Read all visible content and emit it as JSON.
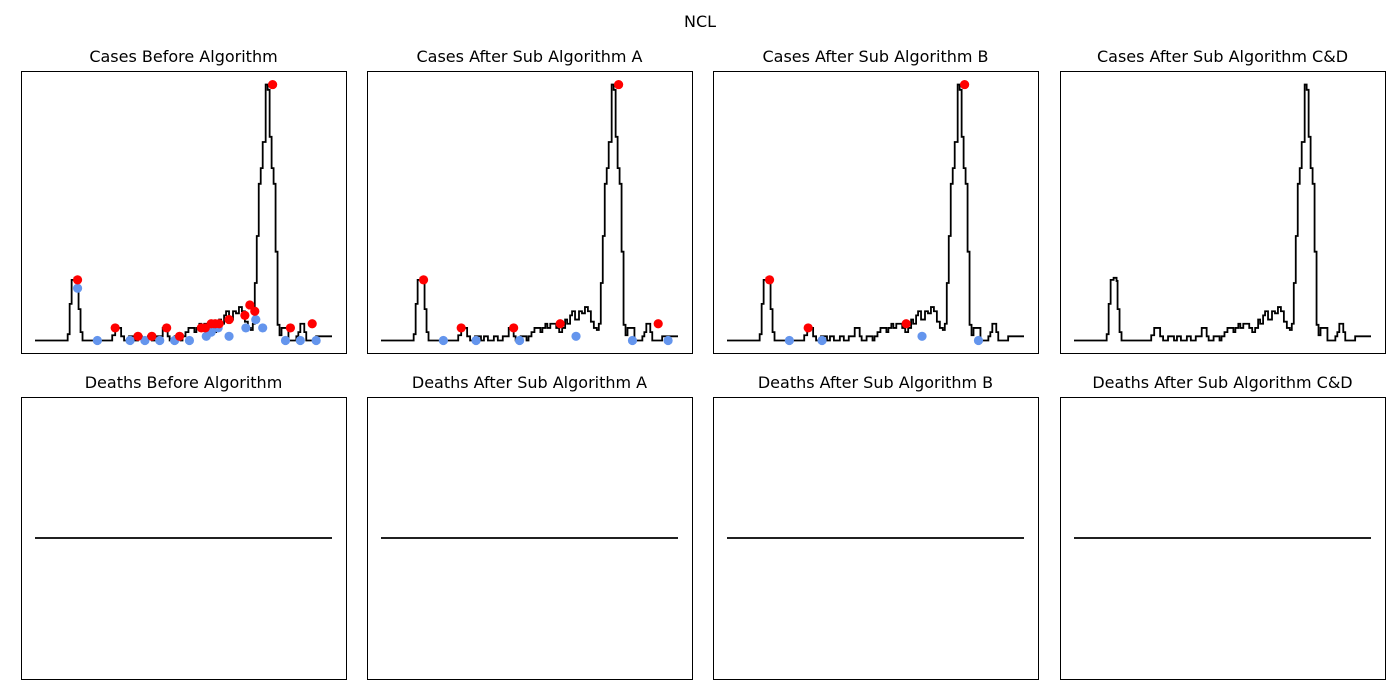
{
  "figure": {
    "suptitle": "NCL"
  },
  "colors": {
    "line": "#000000",
    "peak": "#ff0000",
    "trough": "#6495ed",
    "frame": "#000000"
  },
  "chart_data": [
    {
      "type": "line",
      "title": "Cases Before Algorithm",
      "xlim": [
        0,
        300
      ],
      "ylim": [
        -12,
        258
      ],
      "grid": false,
      "x": [
        0,
        30,
        33,
        35,
        37,
        40,
        43,
        44,
        46,
        48,
        51,
        56,
        60,
        63,
        71,
        78,
        81,
        85,
        87,
        90,
        92,
        95,
        98,
        101,
        104,
        106,
        108,
        111,
        114,
        116,
        118,
        121,
        123,
        125,
        129,
        131,
        134,
        136,
        139,
        141,
        144,
        147,
        149,
        152,
        155,
        158,
        161,
        163,
        166,
        168,
        171,
        174,
        177,
        180,
        183,
        186,
        188,
        191,
        193,
        196,
        200,
        203,
        206,
        209,
        212,
        215,
        218,
        220,
        222,
        224,
        226,
        228,
        230,
        233,
        235,
        237,
        239,
        241,
        243,
        245,
        247,
        249,
        252,
        254,
        256,
        258,
        260,
        262,
        264,
        266,
        268,
        270,
        272,
        274,
        276,
        278,
        281,
        284,
        287,
        300
      ],
      "y": [
        0,
        0,
        6,
        35,
        58,
        60,
        57,
        30,
        8,
        0,
        0,
        0,
        0,
        0,
        0,
        5,
        12,
        12,
        4,
        0,
        0,
        4,
        4,
        0,
        4,
        4,
        0,
        0,
        4,
        4,
        0,
        0,
        4,
        4,
        12,
        12,
        4,
        0,
        0,
        4,
        4,
        0,
        4,
        8,
        12,
        12,
        8,
        12,
        16,
        12,
        16,
        16,
        12,
        8,
        12,
        20,
        16,
        24,
        28,
        20,
        28,
        26,
        32,
        28,
        18,
        12,
        10,
        16,
        55,
        100,
        150,
        165,
        190,
        245,
        240,
        195,
        165,
        150,
        85,
        15,
        5,
        12,
        12,
        12,
        0,
        0,
        0,
        0,
        4,
        8,
        16,
        16,
        8,
        0,
        0,
        0,
        0,
        4,
        4,
        4
      ],
      "peaks": [
        [
          43,
          58
        ],
        [
          81,
          12
        ],
        [
          104,
          4
        ],
        [
          118,
          4
        ],
        [
          133,
          12
        ],
        [
          146,
          4
        ],
        [
          168,
          12
        ],
        [
          172,
          12
        ],
        [
          178,
          16
        ],
        [
          182,
          16
        ],
        [
          186,
          16
        ],
        [
          196,
          20
        ],
        [
          212,
          24
        ],
        [
          217,
          34
        ],
        [
          222,
          28
        ],
        [
          240,
          245
        ],
        [
          258,
          12
        ],
        [
          280,
          16
        ]
      ],
      "troughs": [
        [
          43,
          50
        ],
        [
          63,
          0
        ],
        [
          96,
          0
        ],
        [
          111,
          0
        ],
        [
          126,
          0
        ],
        [
          141,
          0
        ],
        [
          156,
          0
        ],
        [
          173,
          4
        ],
        [
          178,
          8
        ],
        [
          185,
          12
        ],
        [
          196,
          4
        ],
        [
          213,
          12
        ],
        [
          223,
          20
        ],
        [
          230,
          12
        ],
        [
          253,
          0
        ],
        [
          268,
          0
        ],
        [
          284,
          0
        ]
      ]
    },
    {
      "type": "line",
      "title": "Deaths Before Algorithm",
      "xlim": [
        0,
        300
      ],
      "ylim": [
        -0.055,
        0.055
      ],
      "grid": false,
      "x": [
        0,
        300
      ],
      "y": [
        0,
        0
      ],
      "peaks": [],
      "troughs": []
    },
    {
      "type": "line",
      "title": "Cases After Sub Algorithm A",
      "xlim": [
        0,
        300
      ],
      "ylim": [
        -12,
        258
      ],
      "grid": false,
      "x": [
        0,
        30,
        33,
        35,
        37,
        40,
        43,
        44,
        46,
        48,
        51,
        56,
        60,
        63,
        71,
        78,
        81,
        85,
        87,
        90,
        92,
        95,
        98,
        101,
        104,
        106,
        108,
        111,
        114,
        116,
        118,
        121,
        123,
        125,
        129,
        131,
        134,
        136,
        139,
        141,
        144,
        147,
        149,
        152,
        155,
        158,
        161,
        163,
        166,
        168,
        171,
        174,
        177,
        180,
        183,
        186,
        188,
        191,
        193,
        196,
        200,
        203,
        206,
        209,
        212,
        215,
        218,
        220,
        222,
        224,
        226,
        228,
        230,
        233,
        235,
        237,
        239,
        241,
        243,
        245,
        247,
        249,
        252,
        254,
        256,
        258,
        260,
        262,
        264,
        266,
        268,
        270,
        272,
        274,
        276,
        278,
        281,
        284,
        287,
        300
      ],
      "y": [
        0,
        0,
        6,
        35,
        58,
        60,
        57,
        30,
        8,
        0,
        0,
        0,
        0,
        0,
        0,
        5,
        12,
        12,
        4,
        0,
        0,
        4,
        4,
        0,
        4,
        4,
        0,
        0,
        4,
        4,
        0,
        0,
        4,
        4,
        12,
        12,
        4,
        0,
        0,
        4,
        4,
        0,
        4,
        8,
        12,
        12,
        8,
        12,
        16,
        12,
        16,
        16,
        12,
        8,
        12,
        20,
        16,
        24,
        28,
        20,
        28,
        26,
        32,
        28,
        18,
        12,
        10,
        16,
        55,
        100,
        150,
        165,
        190,
        245,
        240,
        195,
        165,
        150,
        85,
        15,
        5,
        12,
        12,
        12,
        0,
        0,
        0,
        0,
        4,
        8,
        16,
        16,
        8,
        0,
        0,
        0,
        0,
        4,
        4,
        4
      ],
      "peaks": [
        [
          43,
          58
        ],
        [
          81,
          12
        ],
        [
          134,
          12
        ],
        [
          181,
          16
        ],
        [
          240,
          245
        ],
        [
          280,
          16
        ]
      ],
      "troughs": [
        [
          63,
          0
        ],
        [
          96,
          0
        ],
        [
          140,
          0
        ],
        [
          197,
          4
        ],
        [
          254,
          0
        ],
        [
          290,
          0
        ]
      ]
    },
    {
      "type": "line",
      "title": "Deaths After Sub Algorithm A",
      "xlim": [
        0,
        300
      ],
      "ylim": [
        -0.055,
        0.055
      ],
      "grid": false,
      "x": [
        0,
        300
      ],
      "y": [
        0,
        0
      ],
      "peaks": [],
      "troughs": []
    },
    {
      "type": "line",
      "title": "Cases After Sub Algorithm B",
      "xlim": [
        0,
        300
      ],
      "ylim": [
        -12,
        258
      ],
      "grid": false,
      "x": [
        0,
        30,
        33,
        35,
        37,
        40,
        43,
        44,
        46,
        48,
        51,
        56,
        60,
        63,
        71,
        78,
        81,
        85,
        87,
        90,
        92,
        95,
        98,
        101,
        104,
        106,
        108,
        111,
        114,
        116,
        118,
        121,
        123,
        125,
        129,
        131,
        134,
        136,
        139,
        141,
        144,
        147,
        149,
        152,
        155,
        158,
        161,
        163,
        166,
        168,
        171,
        174,
        177,
        180,
        183,
        186,
        188,
        191,
        193,
        196,
        200,
        203,
        206,
        209,
        212,
        215,
        218,
        220,
        222,
        224,
        226,
        228,
        230,
        233,
        235,
        237,
        239,
        241,
        243,
        245,
        247,
        249,
        252,
        254,
        256,
        258,
        260,
        262,
        264,
        266,
        268,
        270,
        272,
        274,
        276,
        278,
        281,
        284,
        287,
        300
      ],
      "y": [
        0,
        0,
        6,
        35,
        58,
        60,
        57,
        30,
        8,
        0,
        0,
        0,
        0,
        0,
        0,
        5,
        12,
        12,
        4,
        0,
        0,
        4,
        4,
        0,
        4,
        4,
        0,
        0,
        4,
        4,
        0,
        0,
        4,
        4,
        12,
        12,
        4,
        0,
        0,
        4,
        4,
        0,
        4,
        8,
        12,
        12,
        8,
        12,
        16,
        12,
        16,
        16,
        12,
        8,
        12,
        20,
        16,
        24,
        28,
        20,
        28,
        26,
        32,
        28,
        18,
        12,
        10,
        16,
        55,
        100,
        150,
        165,
        190,
        245,
        240,
        195,
        165,
        150,
        85,
        15,
        5,
        12,
        12,
        12,
        0,
        0,
        0,
        0,
        4,
        8,
        16,
        16,
        8,
        0,
        0,
        0,
        0,
        4,
        4,
        4
      ],
      "peaks": [
        [
          43,
          58
        ],
        [
          82,
          12
        ],
        [
          181,
          16
        ],
        [
          240,
          245
        ]
      ],
      "troughs": [
        [
          63,
          0
        ],
        [
          96,
          0
        ],
        [
          197,
          4
        ],
        [
          254,
          0
        ]
      ]
    },
    {
      "type": "line",
      "title": "Deaths After Sub Algorithm B",
      "xlim": [
        0,
        300
      ],
      "ylim": [
        -0.055,
        0.055
      ],
      "grid": false,
      "x": [
        0,
        300
      ],
      "y": [
        0,
        0
      ],
      "peaks": [],
      "troughs": []
    },
    {
      "type": "line",
      "title": "Cases After Sub Algorithm C&D",
      "xlim": [
        0,
        300
      ],
      "ylim": [
        -12,
        258
      ],
      "grid": false,
      "x": [
        0,
        30,
        33,
        35,
        37,
        40,
        43,
        44,
        46,
        48,
        51,
        56,
        60,
        63,
        71,
        78,
        81,
        85,
        87,
        90,
        92,
        95,
        98,
        101,
        104,
        106,
        108,
        111,
        114,
        116,
        118,
        121,
        123,
        125,
        129,
        131,
        134,
        136,
        139,
        141,
        144,
        147,
        149,
        152,
        155,
        158,
        161,
        163,
        166,
        168,
        171,
        174,
        177,
        180,
        183,
        186,
        188,
        191,
        193,
        196,
        200,
        203,
        206,
        209,
        212,
        215,
        218,
        220,
        222,
        224,
        226,
        228,
        230,
        233,
        235,
        237,
        239,
        241,
        243,
        245,
        247,
        249,
        252,
        254,
        256,
        258,
        260,
        262,
        264,
        266,
        268,
        270,
        272,
        274,
        276,
        278,
        281,
        284,
        287,
        300
      ],
      "y": [
        0,
        0,
        6,
        35,
        58,
        60,
        57,
        30,
        8,
        0,
        0,
        0,
        0,
        0,
        0,
        5,
        12,
        12,
        4,
        0,
        0,
        4,
        4,
        0,
        4,
        4,
        0,
        0,
        4,
        4,
        0,
        0,
        4,
        4,
        12,
        12,
        4,
        0,
        0,
        4,
        4,
        0,
        4,
        8,
        12,
        12,
        8,
        12,
        16,
        12,
        16,
        16,
        12,
        8,
        12,
        20,
        16,
        24,
        28,
        20,
        28,
        26,
        32,
        28,
        18,
        12,
        10,
        16,
        55,
        100,
        150,
        165,
        190,
        245,
        240,
        195,
        165,
        150,
        85,
        15,
        5,
        12,
        12,
        12,
        0,
        0,
        0,
        0,
        4,
        8,
        16,
        16,
        8,
        0,
        0,
        0,
        0,
        4,
        4,
        4
      ],
      "peaks": [],
      "troughs": []
    },
    {
      "type": "line",
      "title": "Deaths After Sub Algorithm C&D",
      "xlim": [
        0,
        300
      ],
      "ylim": [
        -0.055,
        0.055
      ],
      "grid": false,
      "x": [
        0,
        300
      ],
      "y": [
        0,
        0
      ],
      "peaks": [],
      "troughs": []
    }
  ]
}
